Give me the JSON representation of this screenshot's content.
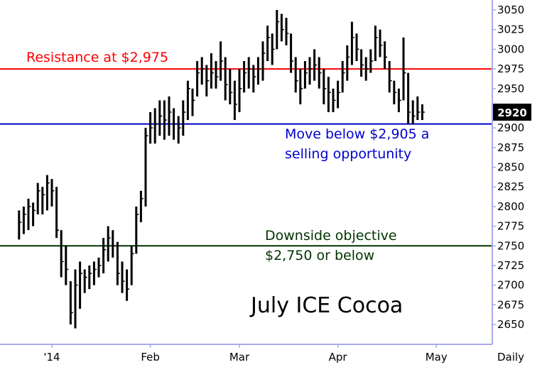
{
  "chart_data": {
    "type": "ohlc",
    "title": "July ICE Cocoa",
    "frequency_label": "Daily",
    "current_price": "2920",
    "y_axis": {
      "position": "right",
      "ylim": [
        2625,
        3060
      ],
      "ticks": [
        "3050",
        "3025",
        "3000",
        "2975",
        "2950",
        "2925",
        "2900",
        "2875",
        "2850",
        "2825",
        "2800",
        "2775",
        "2750",
        "2725",
        "2700",
        "2675",
        "2650"
      ]
    },
    "x_axis": {
      "labels": [
        {
          "text": "'14",
          "index": 0
        },
        {
          "text": "Feb",
          "index": 21
        },
        {
          "text": "Mar",
          "index": 40
        },
        {
          "text": "Apr",
          "index": 61
        },
        {
          "text": "May",
          "index": 82
        }
      ]
    },
    "levels": [
      {
        "name": "resistance",
        "value": 2975,
        "color": "#ff0000",
        "label_lines": [
          "Resistance at $2,975"
        ]
      },
      {
        "name": "sell-trigger",
        "value": 2905,
        "color": "#0000cc",
        "label_lines": [
          "Move below $2,905 a",
          "selling opportunity"
        ]
      },
      {
        "name": "objective",
        "value": 2750,
        "color": "#003300",
        "label_lines": [
          "Downside objective",
          "$2,750 or below"
        ]
      }
    ],
    "bars_start_index": -7,
    "bars": [
      [
        2795,
        2758,
        2780
      ],
      [
        2800,
        2765,
        2790
      ],
      [
        2810,
        2770,
        2800
      ],
      [
        2805,
        2775,
        2795
      ],
      [
        2830,
        2790,
        2820
      ],
      [
        2825,
        2790,
        2815
      ],
      [
        2840,
        2795,
        2830
      ],
      [
        2835,
        2800,
        2820
      ],
      [
        2825,
        2760,
        2770
      ],
      [
        2770,
        2710,
        2730
      ],
      [
        2750,
        2700,
        2720
      ],
      [
        2705,
        2650,
        2665
      ],
      [
        2720,
        2645,
        2700
      ],
      [
        2730,
        2670,
        2715
      ],
      [
        2720,
        2690,
        2710
      ],
      [
        2725,
        2695,
        2715
      ],
      [
        2730,
        2700,
        2720
      ],
      [
        2735,
        2710,
        2725
      ],
      [
        2760,
        2715,
        2745
      ],
      [
        2775,
        2730,
        2760
      ],
      [
        2770,
        2735,
        2750
      ],
      [
        2755,
        2700,
        2715
      ],
      [
        2730,
        2690,
        2705
      ],
      [
        2720,
        2680,
        2695
      ],
      [
        2750,
        2700,
        2740
      ],
      [
        2800,
        2740,
        2790
      ],
      [
        2820,
        2780,
        2810
      ],
      [
        2900,
        2800,
        2890
      ],
      [
        2920,
        2880,
        2900
      ],
      [
        2925,
        2880,
        2905
      ],
      [
        2935,
        2890,
        2915
      ],
      [
        2935,
        2885,
        2910
      ],
      [
        2940,
        2890,
        2920
      ],
      [
        2925,
        2885,
        2905
      ],
      [
        2915,
        2880,
        2900
      ],
      [
        2935,
        2890,
        2920
      ],
      [
        2960,
        2910,
        2950
      ],
      [
        2950,
        2915,
        2935
      ],
      [
        2985,
        2940,
        2970
      ],
      [
        2990,
        2955,
        2975
      ],
      [
        2980,
        2940,
        2960
      ],
      [
        2995,
        2950,
        2970
      ],
      [
        2985,
        2950,
        2965
      ],
      [
        3010,
        2960,
        2985
      ],
      [
        2990,
        2935,
        2955
      ],
      [
        2975,
        2930,
        2945
      ],
      [
        2960,
        2910,
        2930
      ],
      [
        2975,
        2920,
        2950
      ],
      [
        2985,
        2945,
        2970
      ],
      [
        2990,
        2950,
        2975
      ],
      [
        2980,
        2945,
        2965
      ],
      [
        2990,
        2955,
        2975
      ],
      [
        3010,
        2960,
        2995
      ],
      [
        3030,
        2985,
        3015
      ],
      [
        3020,
        2980,
        3000
      ],
      [
        3050,
        3000,
        3035
      ],
      [
        3045,
        3010,
        3025
      ],
      [
        3040,
        3005,
        3020
      ],
      [
        3020,
        2970,
        2985
      ],
      [
        2990,
        2945,
        2960
      ],
      [
        2975,
        2930,
        2950
      ],
      [
        2985,
        2950,
        2970
      ],
      [
        2990,
        2955,
        2975
      ],
      [
        3000,
        2960,
        2980
      ],
      [
        2990,
        2950,
        2970
      ],
      [
        2975,
        2930,
        2950
      ],
      [
        2965,
        2920,
        2945
      ],
      [
        2950,
        2920,
        2935
      ],
      [
        2960,
        2925,
        2945
      ],
      [
        2985,
        2945,
        2970
      ],
      [
        3005,
        2960,
        2990
      ],
      [
        3035,
        2980,
        3015
      ],
      [
        3020,
        2985,
        3000
      ],
      [
        3000,
        2965,
        2980
      ],
      [
        2990,
        2960,
        2975
      ],
      [
        3000,
        2970,
        2985
      ],
      [
        3030,
        2985,
        3015
      ],
      [
        3025,
        2990,
        3005
      ],
      [
        3010,
        2975,
        2990
      ],
      [
        2985,
        2945,
        2960
      ],
      [
        2960,
        2930,
        2945
      ],
      [
        2950,
        2920,
        2935
      ],
      [
        3015,
        2935,
        2970
      ],
      [
        2970,
        2905,
        2920
      ],
      [
        2935,
        2905,
        2915
      ],
      [
        2940,
        2910,
        2920
      ],
      [
        2930,
        2910,
        2920
      ]
    ]
  }
}
